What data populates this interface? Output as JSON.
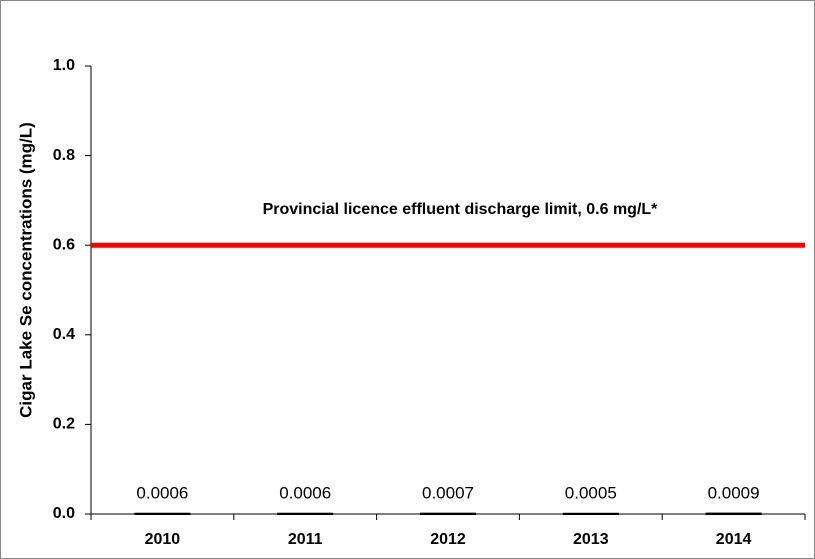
{
  "chart_data": {
    "type": "bar",
    "y_label": "Cigar Lake Se concentrations (mg/L)",
    "categories": [
      "2010",
      "2011",
      "2012",
      "2013",
      "2014"
    ],
    "values": [
      0.0006,
      0.0006,
      0.0007,
      0.0005,
      0.0009
    ],
    "color": "#000000",
    "ylim": [
      0,
      1
    ],
    "yticks": [
      {
        "value": 0,
        "label": "0.0"
      },
      0.2,
      0.4,
      0.6,
      0.8,
      {
        "value": 1,
        "label": "1.0"
      }
    ],
    "reference_line": {
      "value": 0.6,
      "label": "Provincial licence effluent discharge limit, 0.6 mg/L*",
      "color": "#ff0000"
    }
  }
}
